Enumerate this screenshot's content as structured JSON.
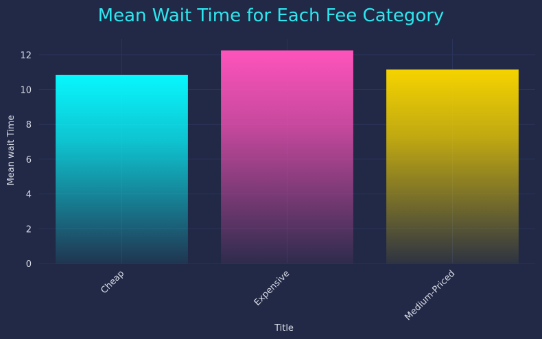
{
  "chart_data": {
    "type": "bar",
    "title": "Mean Wait Time for Each Fee Category",
    "xlabel": "Title",
    "ylabel": "Mean wait Time",
    "categories": [
      "Cheap",
      "Expensive",
      "Medium-Priced"
    ],
    "values": [
      10.85,
      12.25,
      11.15
    ],
    "ylim": [
      0,
      12.9
    ],
    "yticks": [
      "0",
      "2",
      "4",
      "6",
      "8",
      "10",
      "12"
    ],
    "grid": true,
    "bar_colors": [
      "#08F7FE",
      "#FE53BB",
      "#F5D300"
    ],
    "colors": {
      "background": "#212946",
      "title": "#2CE7EF",
      "text": "#D9DCE6",
      "grid": "#2A3459"
    }
  }
}
